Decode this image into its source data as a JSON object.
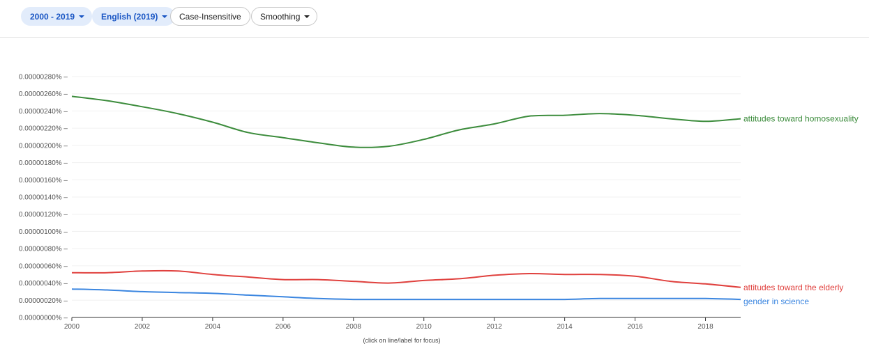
{
  "toolbar": {
    "year_range": "2000 - 2019",
    "corpus": "English (2019)",
    "case": "Case-Insensitive",
    "smoothing": "Smoothing"
  },
  "hint": "(click on line/label for focus)",
  "chart_data": {
    "type": "line",
    "x_range": [
      2000,
      2019
    ],
    "x_ticks": [
      2000,
      2002,
      2004,
      2006,
      2008,
      2010,
      2012,
      2014,
      2016,
      2018
    ],
    "y_ticks": [
      0,
      2e-07,
      4e-07,
      6e-07,
      8e-07,
      1e-06,
      1.2e-06,
      1.4e-06,
      1.6e-06,
      1.8e-06,
      2e-06,
      2.2e-06,
      2.4e-06,
      2.6e-06,
      2.8e-06
    ],
    "y_tick_labels": [
      "0.00000000%",
      "0.00000020%",
      "0.00000040%",
      "0.00000060%",
      "0.00000080%",
      "0.00000100%",
      "0.00000120%",
      "0.00000140%",
      "0.00000160%",
      "0.00000180%",
      "0.00000200%",
      "0.00000220%",
      "0.00000240%",
      "0.00000260%",
      "0.00000280%"
    ],
    "ylim": [
      0,
      2.8e-06
    ],
    "y_unit": "%",
    "grid": true,
    "legend": "inline labels at line ends",
    "series": [
      {
        "name": "attitudes toward homosexuality",
        "color": "#3c8c3c",
        "x": [
          2000,
          2001,
          2002,
          2003,
          2004,
          2005,
          2006,
          2007,
          2008,
          2009,
          2010,
          2011,
          2012,
          2013,
          2014,
          2015,
          2016,
          2017,
          2018,
          2019
        ],
        "values": [
          2.57e-06,
          2.52e-06,
          2.45e-06,
          2.37e-06,
          2.27e-06,
          2.15e-06,
          2.09e-06,
          2.03e-06,
          1.98e-06,
          1.99e-06,
          2.07e-06,
          2.18e-06,
          2.25e-06,
          2.34e-06,
          2.35e-06,
          2.37e-06,
          2.35e-06,
          2.31e-06,
          2.28e-06,
          2.31e-06
        ]
      },
      {
        "name": "attitudes toward the elderly",
        "color": "#e0413e",
        "x": [
          2000,
          2001,
          2002,
          2003,
          2004,
          2005,
          2006,
          2007,
          2008,
          2009,
          2010,
          2011,
          2012,
          2013,
          2014,
          2015,
          2016,
          2017,
          2018,
          2019
        ],
        "values": [
          5.2e-07,
          5.2e-07,
          5.4e-07,
          5.4e-07,
          5e-07,
          4.7e-07,
          4.4e-07,
          4.4e-07,
          4.2e-07,
          4e-07,
          4.3e-07,
          4.5e-07,
          4.9e-07,
          5.1e-07,
          5e-07,
          5e-07,
          4.8e-07,
          4.2e-07,
          3.9e-07,
          3.5e-07
        ]
      },
      {
        "name": "gender in science",
        "color": "#3b86e0",
        "x": [
          2000,
          2001,
          2002,
          2003,
          2004,
          2005,
          2006,
          2007,
          2008,
          2009,
          2010,
          2011,
          2012,
          2013,
          2014,
          2015,
          2016,
          2017,
          2018,
          2019
        ],
        "values": [
          3.3e-07,
          3.2e-07,
          3e-07,
          2.9e-07,
          2.8e-07,
          2.6e-07,
          2.4e-07,
          2.2e-07,
          2.1e-07,
          2.1e-07,
          2.1e-07,
          2.1e-07,
          2.1e-07,
          2.1e-07,
          2.1e-07,
          2.2e-07,
          2.2e-07,
          2.2e-07,
          2.2e-07,
          2.1e-07
        ]
      }
    ]
  }
}
